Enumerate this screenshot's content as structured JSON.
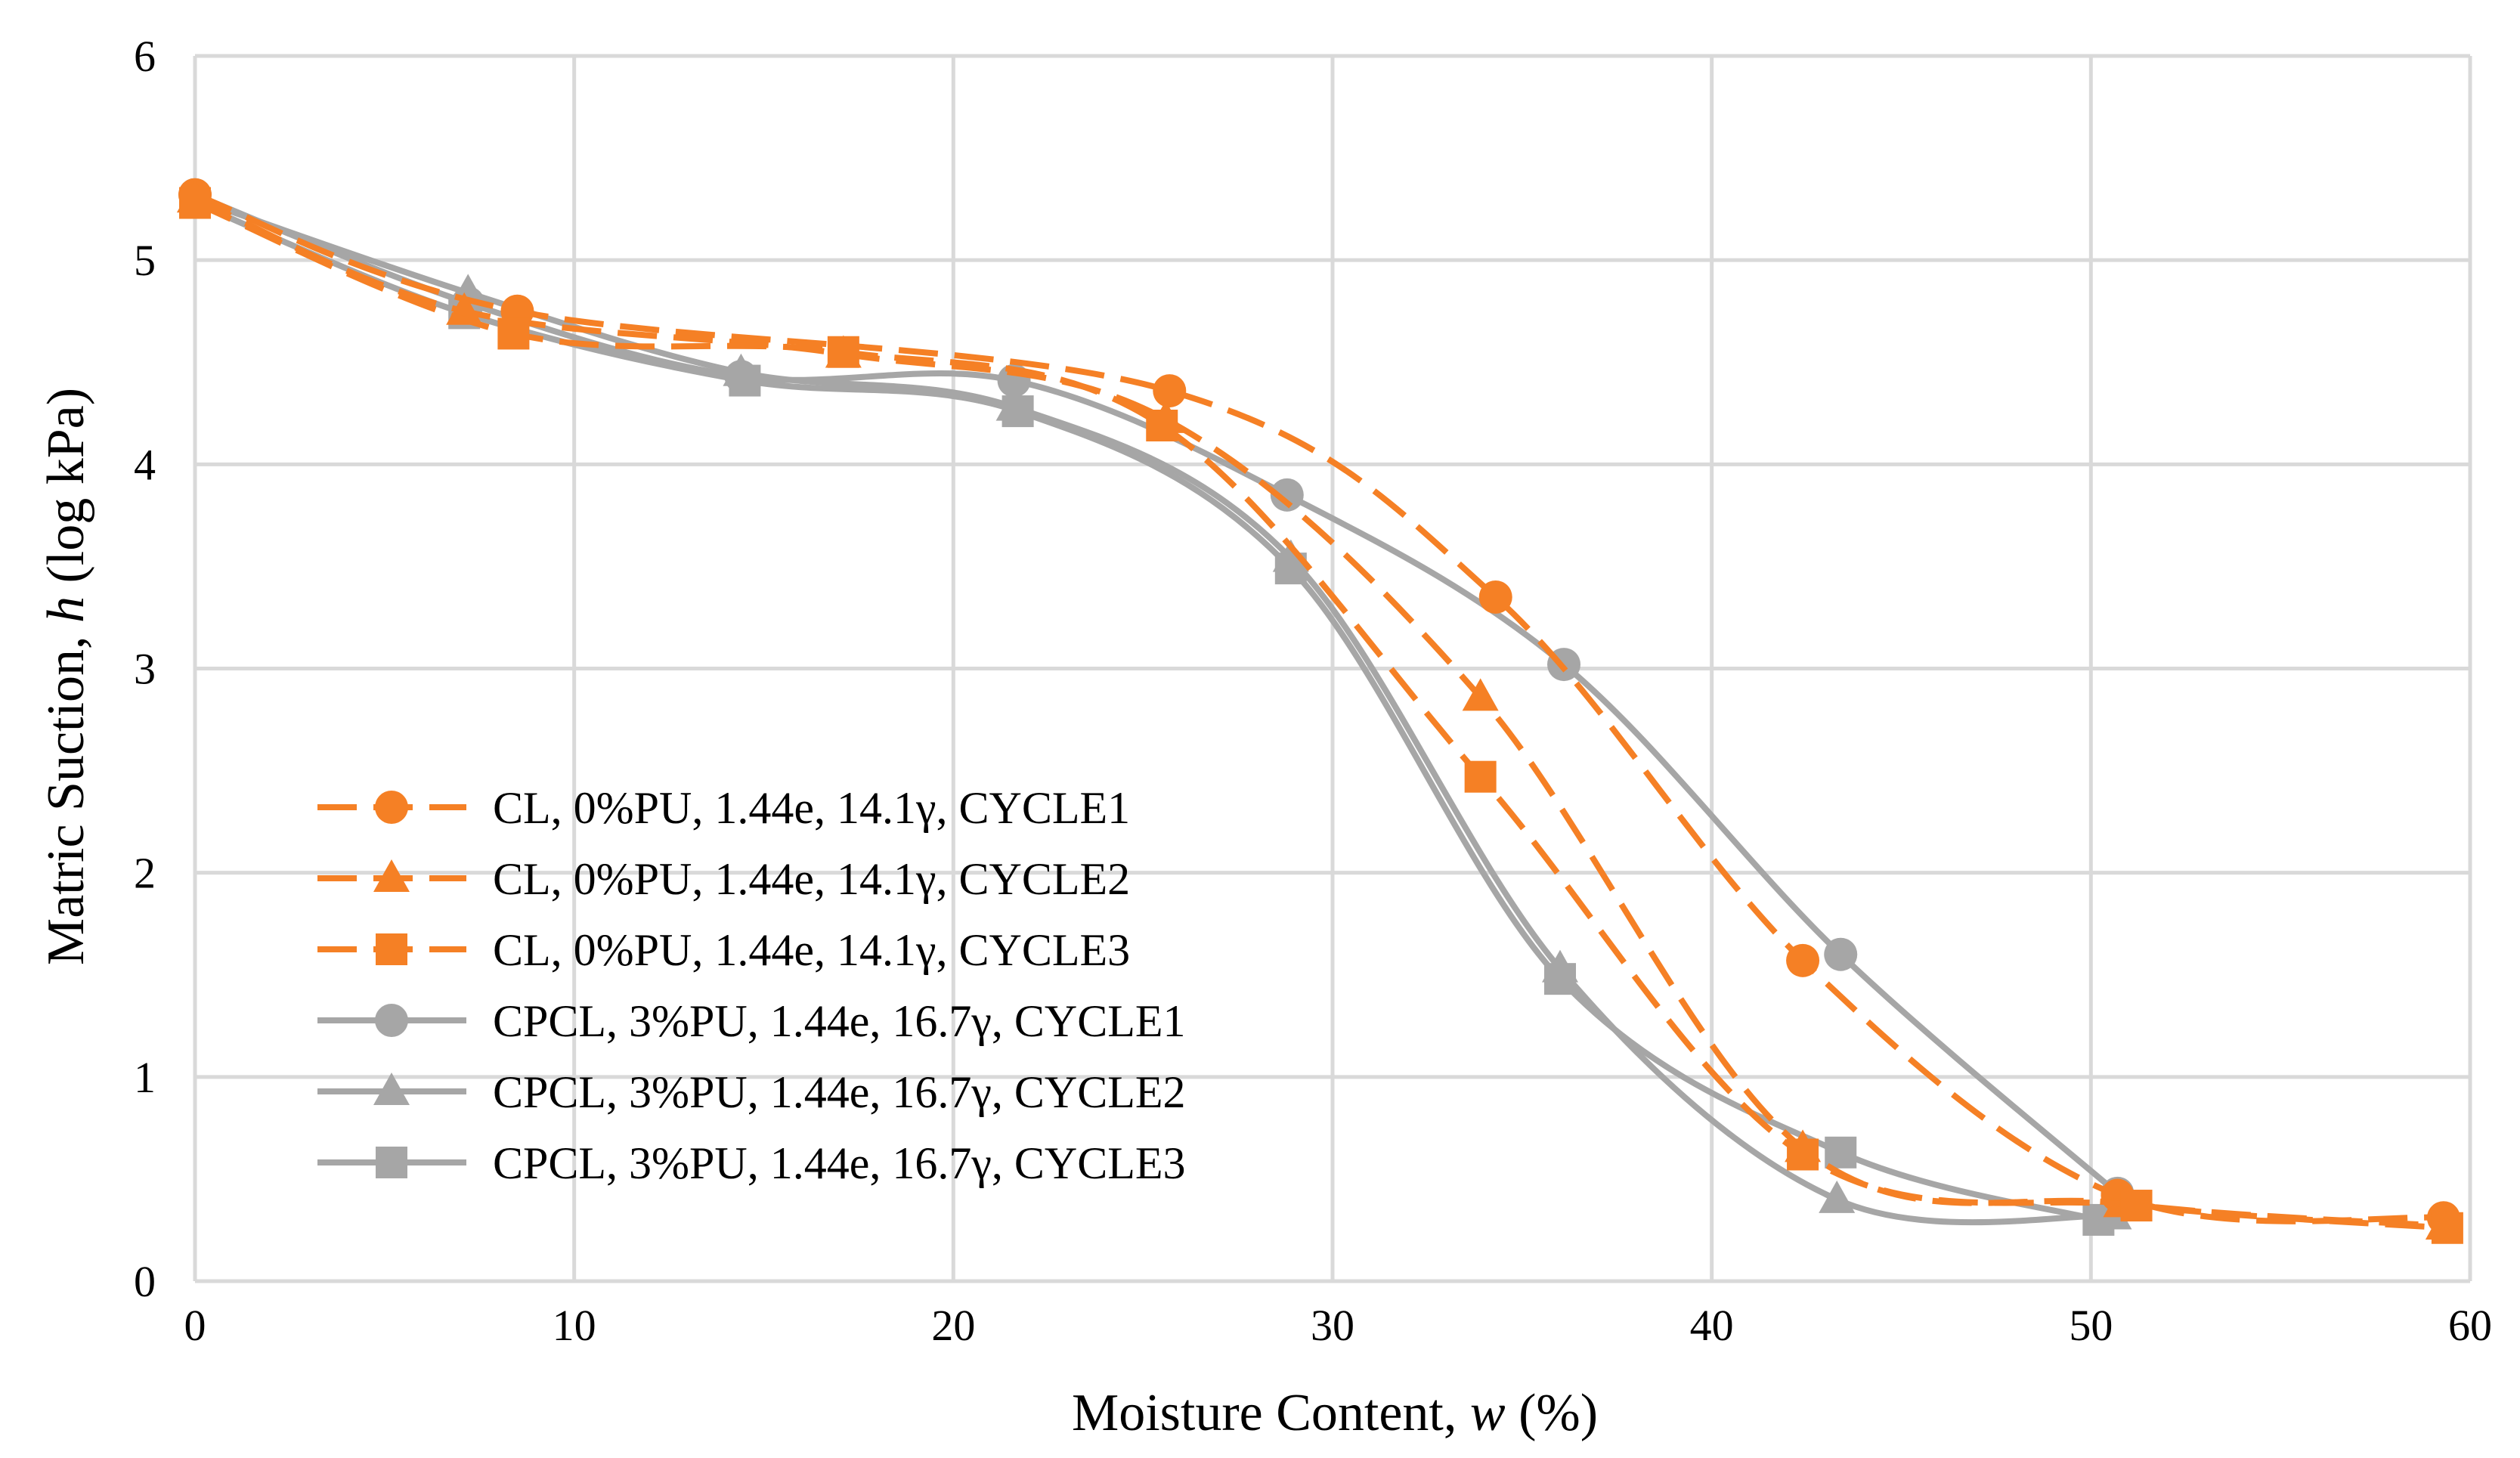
{
  "chart_data": {
    "type": "line",
    "title": "",
    "xlabel_prefix": "Moisture Content, ",
    "xlabel_var": "w",
    "xlabel_suffix": " (%)",
    "ylabel_prefix": "Matric Suction, ",
    "ylabel_var": "h",
    "ylabel_suffix": " (log kPa)",
    "xlim": [
      0,
      60
    ],
    "ylim": [
      0,
      6
    ],
    "xticks": [
      0,
      10,
      20,
      30,
      40,
      50,
      60
    ],
    "yticks": [
      0,
      1,
      2,
      3,
      4,
      5,
      6
    ],
    "grid": true,
    "legend_position": "bottom-left",
    "colors": {
      "orange": "#F58025",
      "gray": "#A6A6A6"
    },
    "series": [
      {
        "name": "CL, 0%PU, 1.44e, 14.1γ, CYCLE1",
        "color": "#F58025",
        "dash": true,
        "marker": "circle",
        "points": [
          [
            0,
            5.32
          ],
          [
            8.5,
            4.75
          ],
          [
            25.7,
            4.36
          ],
          [
            34.3,
            3.35
          ],
          [
            42.4,
            1.57
          ],
          [
            50.7,
            0.42
          ],
          [
            59.3,
            0.31
          ]
        ]
      },
      {
        "name": "CL, 0%PU, 1.44e, 14.1γ, CYCLE2",
        "color": "#F58025",
        "dash": true,
        "marker": "triangle",
        "points": [
          [
            0,
            5.3
          ],
          [
            7.1,
            4.75
          ],
          [
            17.1,
            4.54
          ],
          [
            25.6,
            4.22
          ],
          [
            33.9,
            2.86
          ],
          [
            42.4,
            0.65
          ],
          [
            50.8,
            0.38
          ],
          [
            59.3,
            0.27
          ]
        ]
      },
      {
        "name": "CL, 0%PU, 1.44e, 14.1γ, CYCLE3",
        "color": "#F58025",
        "dash": true,
        "marker": "square",
        "points": [
          [
            0,
            5.28
          ],
          [
            8.4,
            4.64
          ],
          [
            17.1,
            4.55
          ],
          [
            25.5,
            4.19
          ],
          [
            33.9,
            2.47
          ],
          [
            42.4,
            0.62
          ],
          [
            51.2,
            0.37
          ],
          [
            59.4,
            0.26
          ]
        ]
      },
      {
        "name": "CPCL, 3%PU, 1.44e, 16.7γ, CYCLE1",
        "color": "#A6A6A6",
        "dash": false,
        "marker": "circle",
        "points": [
          [
            0,
            5.32
          ],
          [
            7.2,
            4.79
          ],
          [
            14.4,
            4.43
          ],
          [
            21.6,
            4.41
          ],
          [
            28.8,
            3.85
          ],
          [
            36.1,
            3.02
          ],
          [
            43.4,
            1.6
          ],
          [
            50.7,
            0.43
          ]
        ]
      },
      {
        "name": "CPCL, 3%PU, 1.44e, 16.7γ, CYCLE2",
        "color": "#A6A6A6",
        "dash": false,
        "marker": "triangle",
        "points": [
          [
            0,
            5.3
          ],
          [
            7.2,
            4.84
          ],
          [
            14.4,
            4.45
          ],
          [
            21.6,
            4.28
          ],
          [
            28.9,
            3.54
          ],
          [
            36.0,
            1.53
          ],
          [
            43.3,
            0.4
          ],
          [
            50.6,
            0.32
          ]
        ]
      },
      {
        "name": "CPCL, 3%PU, 1.44e, 16.7γ, CYCLE3",
        "color": "#A6A6A6",
        "dash": false,
        "marker": "square",
        "points": [
          [
            0,
            5.28
          ],
          [
            7.1,
            4.74
          ],
          [
            14.5,
            4.41
          ],
          [
            21.7,
            4.26
          ],
          [
            28.9,
            3.49
          ],
          [
            36.0,
            1.48
          ],
          [
            43.4,
            0.63
          ],
          [
            50.2,
            0.3
          ]
        ]
      }
    ]
  }
}
